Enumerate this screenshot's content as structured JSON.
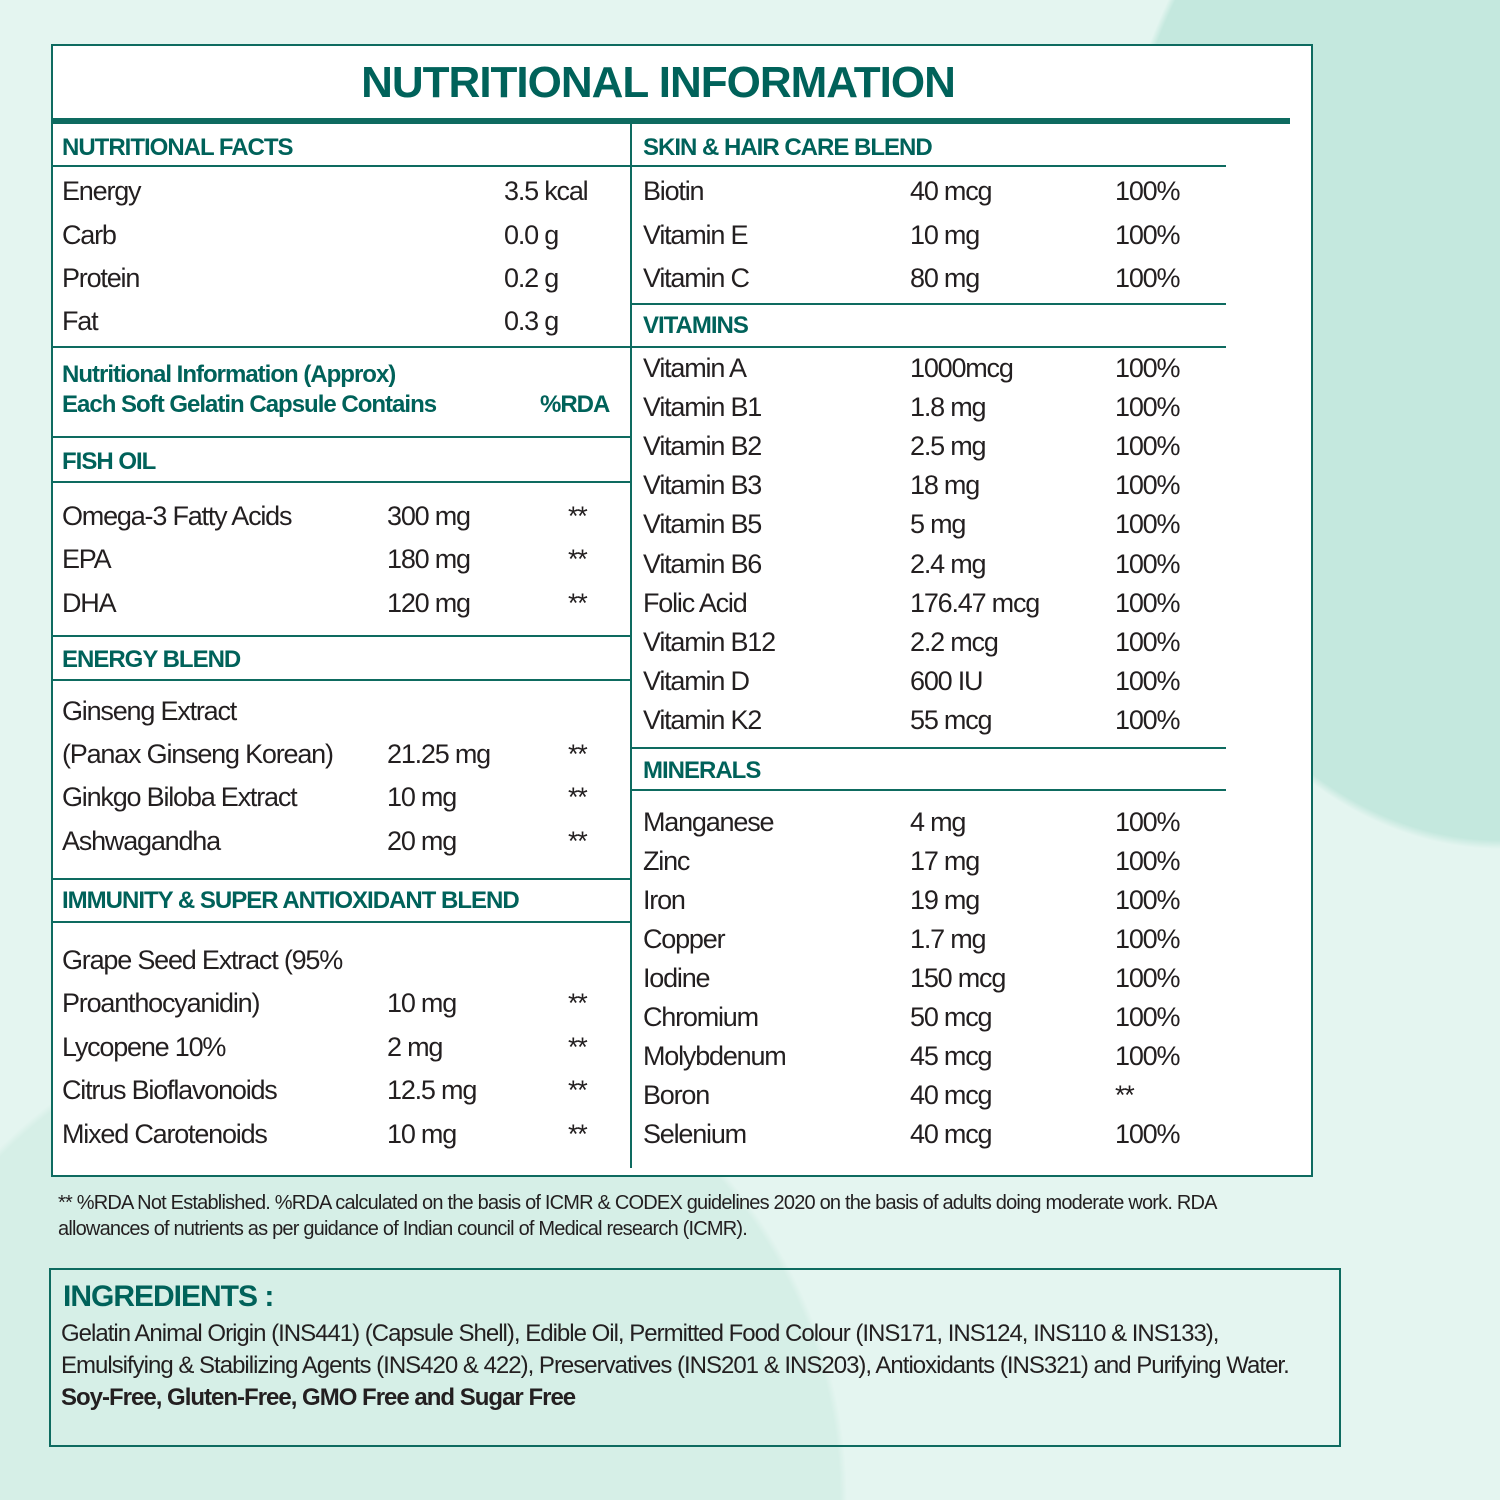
{
  "title": "NUTRITIONAL INFORMATION",
  "left": {
    "facts": {
      "header": "NUTRITIONAL FACTS",
      "rows": [
        [
          "Energy",
          "3.5 kcal"
        ],
        [
          "Carb",
          "0.0 g"
        ],
        [
          "Protein",
          "0.2 g"
        ],
        [
          "Fat",
          "0.3 g"
        ]
      ]
    },
    "approx": {
      "line1": "Nutritional Information (Approx)",
      "line2": "Each Soft Gelatin Capsule Contains",
      "rda": "%RDA"
    },
    "fish_oil": {
      "header": "FISH OIL",
      "rows": [
        [
          "Omega-3 Fatty Acids",
          "300 mg",
          "**"
        ],
        [
          "EPA",
          "180 mg",
          "**"
        ],
        [
          "DHA",
          "120 mg",
          "**"
        ]
      ]
    },
    "energy_blend": {
      "header": "ENERGY BLEND",
      "rows": [
        [
          "Ginseng Extract",
          "",
          ""
        ],
        [
          "(Panax Ginseng Korean)",
          "21.25 mg",
          "**"
        ],
        [
          "Ginkgo Biloba Extract",
          "10 mg",
          "**"
        ],
        [
          "Ashwagandha",
          "20 mg",
          "**"
        ]
      ]
    },
    "immunity": {
      "header": "IMMUNITY & SUPER ANTIOXIDANT BLEND",
      "rows": [
        [
          "Grape Seed Extract (95%",
          "",
          ""
        ],
        [
          "Proanthocyanidin)",
          "10 mg",
          "**"
        ],
        [
          "Lycopene 10%",
          "2 mg",
          "**"
        ],
        [
          "Citrus Bioflavonoids",
          "12.5 mg",
          "**"
        ],
        [
          "Mixed Carotenoids",
          "10 mg",
          "**"
        ]
      ]
    }
  },
  "right": {
    "skin_hair": {
      "header": "SKIN & HAIR CARE BLEND",
      "rows": [
        [
          "Biotin",
          "40 mcg",
          "100%"
        ],
        [
          "Vitamin E",
          "10 mg",
          "100%"
        ],
        [
          "Vitamin C",
          "80 mg",
          "100%"
        ]
      ]
    },
    "vitamins": {
      "header": "VITAMINS",
      "rows": [
        [
          "Vitamin A",
          "1000mcg",
          "100%"
        ],
        [
          "Vitamin B1",
          "1.8 mg",
          "100%"
        ],
        [
          "Vitamin B2",
          "2.5 mg",
          "100%"
        ],
        [
          "Vitamin B3",
          "18 mg",
          "100%"
        ],
        [
          "Vitamin B5",
          "5 mg",
          "100%"
        ],
        [
          "Vitamin B6",
          "2.4 mg",
          "100%"
        ],
        [
          "Folic Acid",
          "176.47 mcg",
          "100%"
        ],
        [
          "Vitamin B12",
          "2.2 mcg",
          "100%"
        ],
        [
          "Vitamin D",
          "600 IU",
          "100%"
        ],
        [
          "Vitamin K2",
          "55 mcg",
          "100%"
        ]
      ]
    },
    "minerals": {
      "header": "MINERALS",
      "rows": [
        [
          "Manganese",
          "4 mg",
          "100%"
        ],
        [
          "Zinc",
          "17 mg",
          "100%"
        ],
        [
          "Iron",
          "19 mg",
          "100%"
        ],
        [
          "Copper",
          "1.7 mg",
          "100%"
        ],
        [
          "Iodine",
          "150 mcg",
          "100%"
        ],
        [
          "Chromium",
          "50 mcg",
          "100%"
        ],
        [
          "Molybdenum",
          "45 mcg",
          "100%"
        ],
        [
          "Boron",
          "40 mcg",
          "**"
        ],
        [
          "Selenium",
          "40 mcg",
          "100%"
        ]
      ]
    }
  },
  "footnote": "** %RDA Not Established. %RDA calculated on the basis of ICMR & CODEX guidelines 2020 on the basis of adults doing moderate work. RDA allowances of nutrients as per guidance of Indian council of Medical research (ICMR).",
  "ingredients": {
    "title": "INGREDIENTS :",
    "text": "Gelatin Animal Origin (INS441) (Capsule Shell), Edible Oil, Permitted Food Colour (INS171, INS124, INS110 & INS133), Emulsifying & Stabilizing Agents (INS420 & 422), Preservatives (INS201 & INS203), Antioxidants (INS321) and Purifying Water. ",
    "claims": "Soy-Free, Gluten-Free, GMO Free and Sugar Free"
  },
  "colors": {
    "accent": "#00625a",
    "border": "#0e6b60",
    "background": "#e4f5f0"
  }
}
